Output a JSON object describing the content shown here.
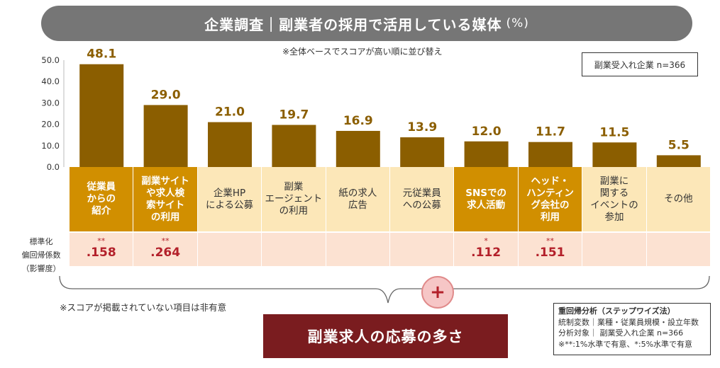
{
  "title": "企業調査｜副業者の採用で活用している媒体",
  "title_unit": "(%)",
  "subnote": "※全体ベースでスコアが高い順に並び替え",
  "sample": "副業受入れ企業 n=366",
  "colors": {
    "bar": "#8b5e00",
    "value_label": "#8b5e00",
    "sig_header": "#d18f00",
    "nonsig_header": "#fce7b8",
    "coef_row": "#fce2d2",
    "coef_text": "#b3202a",
    "result_box": "#7a1c1f"
  },
  "chart_data": {
    "type": "bar",
    "categories": [
      "従業員からの紹介",
      "副業サイトや求人検索サイトの利用",
      "企業HPによる公募",
      "副業エージェントの利用",
      "紙の求人広告",
      "元従業員への公募",
      "SNSでの求人活動",
      "ヘッド・ハンティング会社の利用",
      "副業に関するイベントの参加",
      "その他"
    ],
    "values": [
      48.1,
      29.0,
      21.0,
      19.7,
      16.9,
      13.9,
      12.0,
      11.7,
      11.5,
      5.5
    ],
    "value_labels": [
      "48.1",
      "29.0",
      "21.0",
      "19.7",
      "16.9",
      "13.9",
      "12.0",
      "11.7",
      "11.5",
      "5.5"
    ],
    "ylim": [
      0,
      50
    ],
    "yticks": [
      "0.0",
      "10.0",
      "20.0",
      "30.0",
      "40.0",
      "50.0"
    ],
    "ytick_values": [
      0,
      10,
      20,
      30,
      40,
      50
    ],
    "grid": false
  },
  "table": {
    "row_label_lines": [
      "標準化",
      "偏回帰係数",
      "（影響度）"
    ],
    "headers": [
      {
        "lines": [
          "従業員",
          "からの",
          "紹介"
        ],
        "significant": true
      },
      {
        "lines": [
          "副業サイト",
          "や求人検",
          "索サイト",
          "の利用"
        ],
        "significant": true
      },
      {
        "lines": [
          "企業HP",
          "による公募"
        ],
        "significant": false
      },
      {
        "lines": [
          "副業",
          "エージェント",
          "の利用"
        ],
        "significant": false
      },
      {
        "lines": [
          "紙の求人",
          "広告"
        ],
        "significant": false
      },
      {
        "lines": [
          "元従業員",
          "への公募"
        ],
        "significant": false
      },
      {
        "lines": [
          "SNSでの",
          "求人活動"
        ],
        "significant": true
      },
      {
        "lines": [
          "ヘッド・",
          "ハンティン",
          "グ会社の",
          "利用"
        ],
        "significant": true
      },
      {
        "lines": [
          "副業に",
          "関する",
          "イベントの",
          "参加"
        ],
        "significant": false
      },
      {
        "lines": [
          "その他"
        ],
        "significant": false
      }
    ],
    "coefficients": [
      {
        "stars": "**",
        "value": ".158"
      },
      {
        "stars": "**",
        "value": ".264"
      },
      {
        "stars": "",
        "value": ""
      },
      {
        "stars": "",
        "value": ""
      },
      {
        "stars": "",
        "value": ""
      },
      {
        "stars": "",
        "value": ""
      },
      {
        "stars": "*",
        "value": ".112"
      },
      {
        "stars": "**",
        "value": ".151"
      },
      {
        "stars": "",
        "value": ""
      },
      {
        "stars": "",
        "value": ""
      }
    ]
  },
  "plus_symbol": "+",
  "nonsig_note": "※スコアが掲載されていない項目は非有意",
  "result": "副業求人の応募の多さ",
  "method": {
    "title": "重回帰分析（ステップワイズ法）",
    "lines": [
      "統制変数｜業種・従業員規模・設立年数",
      "分析対象｜ 副業受入れ企業 n=366",
      "※**:1%水準で有意、*:5%水準で有意"
    ]
  }
}
